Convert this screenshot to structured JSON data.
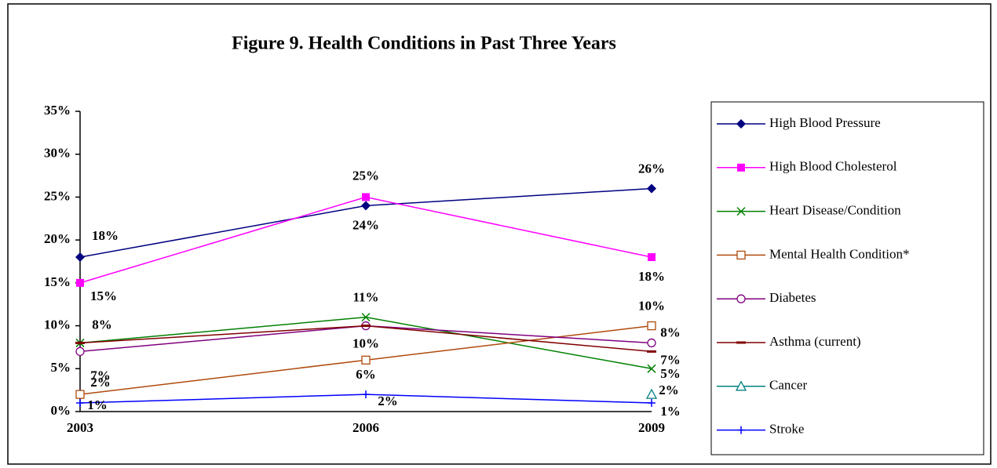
{
  "chart_data": {
    "type": "line",
    "title": "Figure 9. Health Conditions in Past Three Years",
    "categories": [
      "2003",
      "2006",
      "2009"
    ],
    "ylim": [
      0,
      35
    ],
    "yticks": [
      {
        "value": 0,
        "label": "0%"
      },
      {
        "value": 5,
        "label": "5%"
      },
      {
        "value": 10,
        "label": "10%"
      },
      {
        "value": 15,
        "label": "15%"
      },
      {
        "value": 20,
        "label": "20%"
      },
      {
        "value": 25,
        "label": "25%"
      },
      {
        "value": 30,
        "label": "30%"
      },
      {
        "value": 35,
        "label": "35%"
      }
    ],
    "legend": "right",
    "series": [
      {
        "name": "High Blood Pressure",
        "color": "#000080",
        "marker": "diamond",
        "values": [
          18,
          24,
          26
        ],
        "value_labels": [
          "18%",
          "24%",
          "26%"
        ]
      },
      {
        "name": "High Blood Cholesterol",
        "color": "#ff00ff",
        "marker": "square",
        "values": [
          15,
          25,
          18
        ],
        "value_labels": [
          "15%",
          "25%",
          "18%"
        ]
      },
      {
        "name": "Heart Disease/Condition",
        "color": "#008000",
        "marker": "x",
        "values": [
          8,
          11,
          5
        ],
        "value_labels": [
          "8%",
          "11%",
          "5%"
        ]
      },
      {
        "name": "Mental Health Condition*",
        "color": "#b04a0c",
        "marker": "open-square",
        "values": [
          2,
          6,
          10
        ],
        "value_labels": [
          "2%",
          "6%",
          "10%"
        ]
      },
      {
        "name": "Diabetes",
        "color": "#800080",
        "marker": "open-circle",
        "values": [
          7,
          10,
          8
        ],
        "value_labels": [
          "7%",
          "10%",
          "8%"
        ]
      },
      {
        "name": "Asthma (current)",
        "color": "#800000",
        "marker": "dash",
        "values": [
          8,
          10,
          7
        ],
        "value_labels": [
          null,
          null,
          "7%"
        ]
      },
      {
        "name": "Cancer",
        "color": "#008080",
        "marker": "triangle",
        "values": [
          null,
          null,
          2
        ],
        "value_labels": [
          null,
          null,
          "2%"
        ]
      },
      {
        "name": "Stroke",
        "color": "#0000ff",
        "marker": "plus",
        "values": [
          1,
          2,
          1
        ],
        "value_labels": [
          "1%",
          "2%",
          "1%"
        ]
      }
    ]
  }
}
